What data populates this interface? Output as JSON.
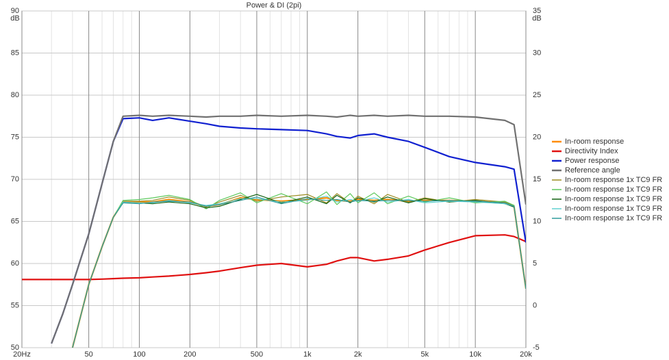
{
  "chart_data": {
    "type": "line",
    "title": "Power & DI (2pi)",
    "y_unit": "dB",
    "y2_unit": "dB",
    "log_x": true,
    "grid": true,
    "legend": "right",
    "xlim": [
      20,
      20000
    ],
    "xticks": [
      {
        "value": 20,
        "label": "20Hz"
      },
      50,
      100,
      200,
      500,
      {
        "value": 1000,
        "label": "1k"
      },
      {
        "value": 2000,
        "label": "2k"
      },
      {
        "value": 5000,
        "label": "5k"
      },
      {
        "value": 10000,
        "label": "10k"
      },
      {
        "value": 20000,
        "label": "20k"
      }
    ],
    "xminorticks": [
      30,
      40,
      60,
      70,
      80,
      90,
      300,
      400,
      600,
      700,
      800,
      900,
      3000,
      4000,
      6000,
      7000,
      8000,
      9000
    ],
    "ylim": [
      50,
      90
    ],
    "yticks": [
      50,
      55,
      60,
      65,
      70,
      75,
      80,
      85,
      90
    ],
    "y2lim": [
      -5,
      35
    ],
    "y2ticks": [
      -5,
      0,
      5,
      10,
      15,
      20,
      25,
      30,
      35
    ],
    "x": [
      20,
      25,
      30,
      35,
      40,
      50,
      60,
      70,
      80,
      100,
      120,
      150,
      200,
      250,
      300,
      400,
      500,
      700,
      1000,
      1300,
      1500,
      1800,
      2000,
      2500,
      3000,
      4000,
      5000,
      7000,
      10000,
      15000,
      17000,
      20000
    ],
    "series": [
      {
        "name": "In-room response",
        "color": "#ff8c00",
        "values": [
          null,
          null,
          null,
          null,
          50,
          57.5,
          62,
          65.5,
          67.3,
          67.3,
          67.3,
          67.6,
          67.3,
          66.8,
          67,
          67.8,
          67.6,
          67.4,
          67.6,
          67.8,
          67.5,
          67.4,
          67.6,
          67.5,
          67.6,
          67.4,
          67.5,
          67.5,
          67.4,
          67.2,
          66.8,
          57
        ]
      },
      {
        "name": "Directivity Index",
        "color": "#e01010",
        "axis": "y2",
        "values": [
          3.1,
          3.1,
          3.1,
          3.1,
          3.1,
          3.1,
          3.15,
          3.2,
          3.25,
          3.3,
          3.4,
          3.5,
          3.7,
          3.9,
          4.1,
          4.5,
          4.8,
          5.0,
          4.6,
          4.9,
          5.3,
          5.7,
          5.7,
          5.3,
          5.5,
          5.9,
          6.6,
          7.5,
          8.3,
          8.4,
          8.2,
          7.6
        ]
      },
      {
        "name": "Power response",
        "color": "#1020d0",
        "values": [
          null,
          null,
          50.5,
          54,
          57.5,
          63.5,
          69.5,
          74.5,
          77.2,
          77.3,
          77,
          77.3,
          76.9,
          76.6,
          76.3,
          76.1,
          76,
          75.9,
          75.8,
          75.4,
          75.1,
          74.9,
          75.2,
          75.4,
          75,
          74.5,
          73.8,
          72.7,
          72,
          71.5,
          71.2,
          62.5
        ]
      },
      {
        "name": "Reference angle",
        "color": "#707070",
        "values": [
          null,
          null,
          50.5,
          54,
          57.5,
          63.5,
          69.5,
          74.5,
          77.5,
          77.6,
          77.5,
          77.6,
          77.5,
          77.4,
          77.5,
          77.5,
          77.6,
          77.5,
          77.6,
          77.5,
          77.4,
          77.6,
          77.5,
          77.6,
          77.5,
          77.6,
          77.5,
          77.5,
          77.4,
          77,
          76.5,
          67
        ]
      },
      {
        "name": "In-room response 1x TC9 FR",
        "color": "#9a8a20",
        "values": [
          null,
          null,
          null,
          null,
          50,
          57.5,
          62,
          65.5,
          67.4,
          67.4,
          67.5,
          67.9,
          67.5,
          66.7,
          67.3,
          68.1,
          67.4,
          67.9,
          68.2,
          67.2,
          68.3,
          67.2,
          68,
          67.1,
          68.2,
          67.3,
          67.8,
          67.3,
          67.6,
          67.3,
          66.9,
          57
        ]
      },
      {
        "name": "In-room response 1x TC9 FR",
        "color": "#5cc85c",
        "values": [
          null,
          null,
          null,
          null,
          50,
          57.5,
          62,
          65.5,
          67.5,
          67.6,
          67.8,
          68.1,
          67.6,
          66.5,
          67.5,
          68.4,
          67.2,
          68.3,
          67.1,
          68.5,
          67,
          68.3,
          67.2,
          68.4,
          67.1,
          68,
          67.3,
          67.8,
          67.2,
          67.4,
          66.9,
          57
        ]
      },
      {
        "name": "In-room response 1x TC9 FR",
        "color": "#106010",
        "values": [
          null,
          null,
          null,
          null,
          50,
          57.5,
          62,
          65.5,
          67.2,
          67.2,
          67.1,
          67.3,
          67.1,
          66.6,
          66.8,
          67.6,
          68.2,
          67.2,
          67.9,
          67.1,
          68.1,
          67.2,
          67.8,
          67.3,
          67.9,
          67.2,
          67.7,
          67.3,
          67.5,
          67.1,
          66.7,
          57
        ]
      },
      {
        "name": "In-room response 1x TC9 FR",
        "color": "#60d0d0",
        "values": [
          null,
          null,
          null,
          null,
          50,
          57.5,
          62,
          65.5,
          67.3,
          67.2,
          67.2,
          67.5,
          67.2,
          66.9,
          67.1,
          67.7,
          67.7,
          67.3,
          67.5,
          68,
          67.3,
          67.6,
          67.4,
          67.8,
          67.3,
          67.6,
          67.2,
          67.4,
          67.3,
          67.1,
          66.8,
          57
        ]
      },
      {
        "name": "In-room response 1x TC9 FR",
        "color": "#2e9a9a",
        "values": [
          null,
          null,
          null,
          null,
          50,
          57.5,
          62,
          65.5,
          67.2,
          67.1,
          67.3,
          67.4,
          67.3,
          66.8,
          67,
          67.5,
          67.9,
          67.1,
          67.7,
          67.5,
          67.6,
          67.3,
          67.5,
          67.4,
          67.5,
          67.5,
          67.4,
          67.5,
          67.4,
          67.2,
          66.8,
          57
        ]
      }
    ]
  }
}
